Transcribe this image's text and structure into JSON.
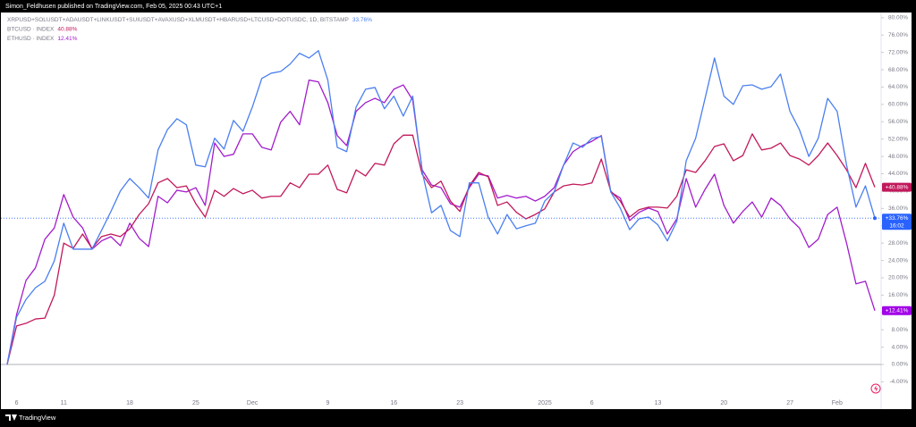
{
  "header": "Simon_Feldhusen published on TradingView.com, Feb 05, 2025 00:43 UTC+1",
  "footer": "TradingView",
  "chart_data": {
    "type": "line",
    "categories": [
      null,
      "6",
      null,
      null,
      null,
      null,
      "11",
      null,
      null,
      null,
      null,
      null,
      null,
      "18",
      null,
      null,
      null,
      null,
      null,
      null,
      "25",
      null,
      null,
      null,
      null,
      null,
      "Dec",
      null,
      null,
      null,
      null,
      null,
      null,
      null,
      "9",
      null,
      null,
      null,
      null,
      null,
      null,
      "16",
      null,
      null,
      null,
      null,
      null,
      null,
      "23",
      null,
      null,
      null,
      null,
      null,
      null,
      null,
      null,
      "2025",
      null,
      null,
      null,
      null,
      "6",
      null,
      null,
      null,
      null,
      null,
      null,
      "13",
      null,
      null,
      null,
      null,
      null,
      null,
      "20",
      null,
      null,
      null,
      null,
      null,
      null,
      "27",
      null,
      null,
      null,
      null,
      "Feb",
      null,
      null,
      null,
      null
    ],
    "series": [
      {
        "name": "XRPUSD+SOLUSDT+ADAUSDT+LINKUSDT+SUIUSDT+AVAXUSD+XLMUSDT+HBARUSD+LTCUSD+DOTUSDC, 1D, BITSTAMP",
        "color": "#4a7ff0",
        "tag_color": "#2962ff",
        "last_label": "33.76%",
        "axis_label": "+33.76%",
        "countdown": "16:02",
        "values": [
          0,
          10.9,
          15,
          17.7,
          19.2,
          23.9,
          32.6,
          26.6,
          26.6,
          26.6,
          30.9,
          35.3,
          40,
          42.9,
          40.8,
          38.4,
          49.5,
          54.2,
          56.7,
          55.3,
          46,
          45.6,
          52.2,
          49.7,
          56.3,
          53.8,
          59.4,
          66,
          67.2,
          67.6,
          69.3,
          71.8,
          70.7,
          72.4,
          65.6,
          50.1,
          49.1,
          59.4,
          63.5,
          63.9,
          59,
          61.9,
          57.3,
          61.9,
          44.5,
          35,
          36.7,
          30.9,
          29.5,
          41.9,
          41.9,
          34,
          30.1,
          34.6,
          31.3,
          32,
          32.6,
          37.7,
          39.8,
          46,
          51.1,
          50.1,
          52.2,
          52.6,
          39.8,
          36.1,
          31.1,
          33.6,
          34,
          32.2,
          28.5,
          33,
          47,
          52.2,
          61.4,
          70.7,
          61.9,
          60,
          64.3,
          64.5,
          63.5,
          64.1,
          67,
          58.4,
          54.2,
          48,
          52.2,
          61.4,
          58.4,
          46,
          36.3,
          41.2,
          33.76
        ]
      },
      {
        "name": "BTCUSD · INDEX",
        "color": "#c2185b",
        "tag_color": "#c2185b",
        "last_label": "40.88%",
        "axis_label": "+40.88%",
        "values": [
          0,
          8.9,
          9.5,
          10.5,
          10.7,
          16,
          28,
          26.8,
          30.1,
          26.8,
          29.5,
          30.1,
          29.5,
          31.3,
          34.6,
          37.1,
          41.9,
          42.9,
          40.8,
          41.2,
          37.1,
          34,
          40.2,
          38.8,
          40.6,
          39.4,
          40.2,
          38.4,
          38.8,
          38.8,
          41.9,
          40.8,
          43.9,
          43.9,
          46,
          40.4,
          39.6,
          44.9,
          43.5,
          46.4,
          46,
          50.9,
          52.9,
          52.9,
          43.9,
          40.8,
          42.3,
          37.7,
          35.3,
          41.2,
          44.3,
          43.3,
          36.7,
          37.5,
          35.1,
          33.6,
          34.6,
          35.9,
          39.8,
          41.2,
          41.6,
          41.4,
          41.9,
          47.4,
          40,
          37.7,
          34,
          35.7,
          36.3,
          36.3,
          36.1,
          38.8,
          44.9,
          44.3,
          47,
          50.3,
          50.9,
          47,
          48.2,
          53.2,
          49.5,
          49.9,
          51.1,
          48.2,
          47.4,
          46,
          48.2,
          51.1,
          48.2,
          44.9,
          40.8,
          46.4,
          40.88
        ]
      },
      {
        "name": "ETHUSD · INDEX",
        "color": "#a21ccc",
        "tag_color": "#a100e8",
        "last_label": "12.41%",
        "axis_label": "+12.41%",
        "values": [
          0,
          11.5,
          19.4,
          22.3,
          28.9,
          31.5,
          39.2,
          34,
          31.5,
          26.6,
          28.5,
          29.5,
          27.4,
          32.6,
          29.1,
          27.2,
          38.8,
          37.3,
          40.2,
          39.8,
          40.8,
          36.7,
          51.1,
          48,
          48.5,
          53.2,
          53.2,
          50.1,
          49.5,
          55.9,
          58.4,
          55.3,
          65.6,
          65.2,
          60.4,
          52.8,
          50.5,
          58.4,
          60.4,
          61.4,
          60.4,
          63.5,
          64.5,
          61,
          44.9,
          41.4,
          40.8,
          37.1,
          36.3,
          40.8,
          43.9,
          43.5,
          38.4,
          39,
          38.4,
          38.8,
          37.7,
          38.8,
          40.8,
          46,
          49.1,
          50.5,
          51.5,
          52.8,
          39.8,
          38.4,
          33.2,
          35.1,
          36.1,
          35.3,
          30.1,
          33.6,
          42.9,
          36.3,
          40.4,
          43.9,
          36.7,
          32.6,
          35.3,
          37.5,
          34,
          38.4,
          36.7,
          33.6,
          31.5,
          27,
          28.9,
          34.6,
          36.3,
          28,
          18.6,
          19.2,
          12.41
        ]
      }
    ],
    "ylim": [
      -10.3,
      81.2
    ],
    "yticks": [
      {
        "value": -4,
        "label": "-4.00%"
      },
      {
        "value": 0,
        "label": "0.00%"
      },
      {
        "value": 4,
        "label": "4.00%"
      },
      {
        "value": 8,
        "label": "8.00%"
      },
      {
        "value": 12,
        "label": "12.00%"
      },
      {
        "value": 16,
        "label": "16.00%"
      },
      {
        "value": 20,
        "label": "20.00%"
      },
      {
        "value": 24,
        "label": "24.00%"
      },
      {
        "value": 28,
        "label": "28.00%"
      },
      {
        "value": 32,
        "label": "32.00%"
      },
      {
        "value": 36,
        "label": "36.00%"
      },
      {
        "value": 40,
        "label": "40.00%"
      },
      {
        "value": 44,
        "label": "44.00%"
      },
      {
        "value": 48,
        "label": "48.00%"
      },
      {
        "value": 52,
        "label": "52.00%"
      },
      {
        "value": 56,
        "label": "56.00%"
      },
      {
        "value": 60,
        "label": "60.00%"
      },
      {
        "value": 64,
        "label": "64.00%"
      },
      {
        "value": 68,
        "label": "68.00%"
      },
      {
        "value": 72,
        "label": "72.00%"
      },
      {
        "value": 76,
        "label": "76.00%"
      },
      {
        "value": 80,
        "label": "80.00%"
      }
    ],
    "grid": false
  }
}
